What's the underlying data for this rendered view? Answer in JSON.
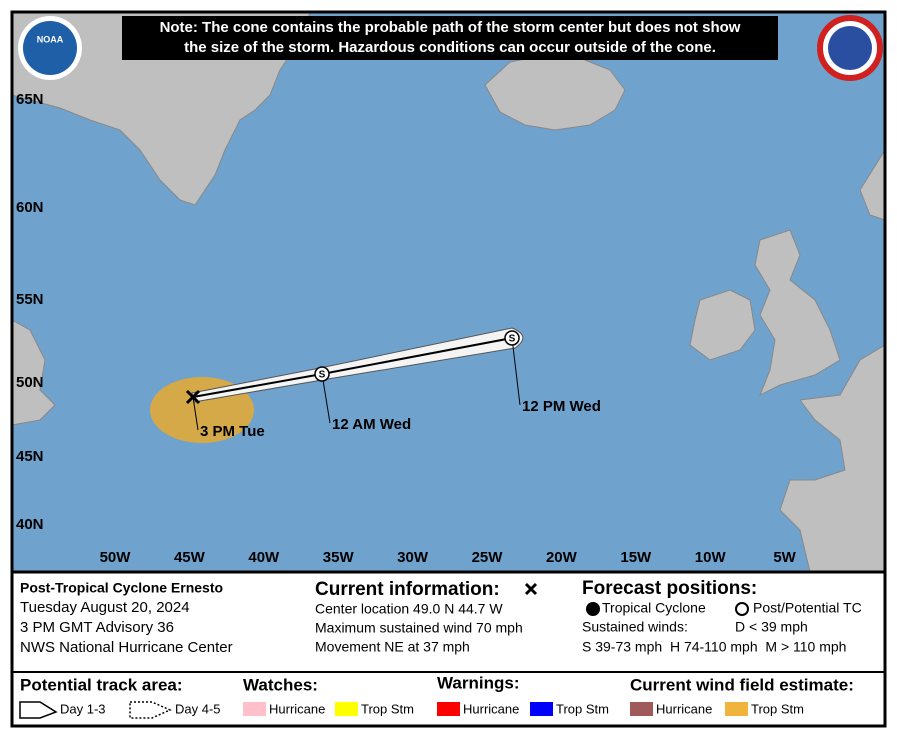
{
  "note": [
    "Note: The cone contains the probable path of the storm center but does not show",
    "the size of the storm. Hazardous conditions can occur outside of the cone."
  ],
  "logo": "NOAA",
  "lat_labels": [
    "65N",
    "60N",
    "55N",
    "50N",
    "45N",
    "40N"
  ],
  "lon_labels": [
    "50W",
    "45W",
    "40W",
    "35W",
    "30W",
    "25W",
    "20W",
    "15W",
    "10W",
    "5W"
  ],
  "track_labels": [
    "3 PM Tue",
    "12 AM Wed",
    "12 PM Wed"
  ],
  "forecast_symbols": [
    "S",
    "S"
  ],
  "storm": {
    "name": "Post-Tropical Cyclone Ernesto",
    "date": "Tuesday August 20, 2024",
    "advisory": "3 PM GMT Advisory 36",
    "office": "NWS National Hurricane Center"
  },
  "current": {
    "title": "Current information:",
    "center": "Center location 49.0 N 44.7 W",
    "wind": "Maximum sustained wind 70 mph",
    "movement": "Movement NE at 37 mph"
  },
  "forecast": {
    "title": "Forecast positions:",
    "tropical": "Tropical Cyclone",
    "post": "Post/Potential TC",
    "winds": "Sustained winds:",
    "depression": "D < 39 mph",
    "scale": "S 39-73 mph  H 74-110 mph  M > 110 mph"
  },
  "legend": {
    "track_title": "Potential track area:",
    "day13": "Day 1-3",
    "day45": "Day 4-5",
    "watches_title": "Watches:",
    "watches": [
      {
        "name": "Hurricane",
        "color": "#ffc0cb"
      },
      {
        "name": "Trop Stm",
        "color": "#ffff00"
      }
    ],
    "warnings_title": "Warnings:",
    "warnings": [
      {
        "name": "Hurricane",
        "color": "#ff0000"
      },
      {
        "name": "Trop Stm",
        "color": "#0000ff"
      }
    ],
    "wind_title": "Current wind field estimate:",
    "wind": [
      {
        "name": "Hurricane",
        "color": "#a05a5a"
      },
      {
        "name": "Trop Stm",
        "color": "#f0b43c"
      }
    ]
  }
}
